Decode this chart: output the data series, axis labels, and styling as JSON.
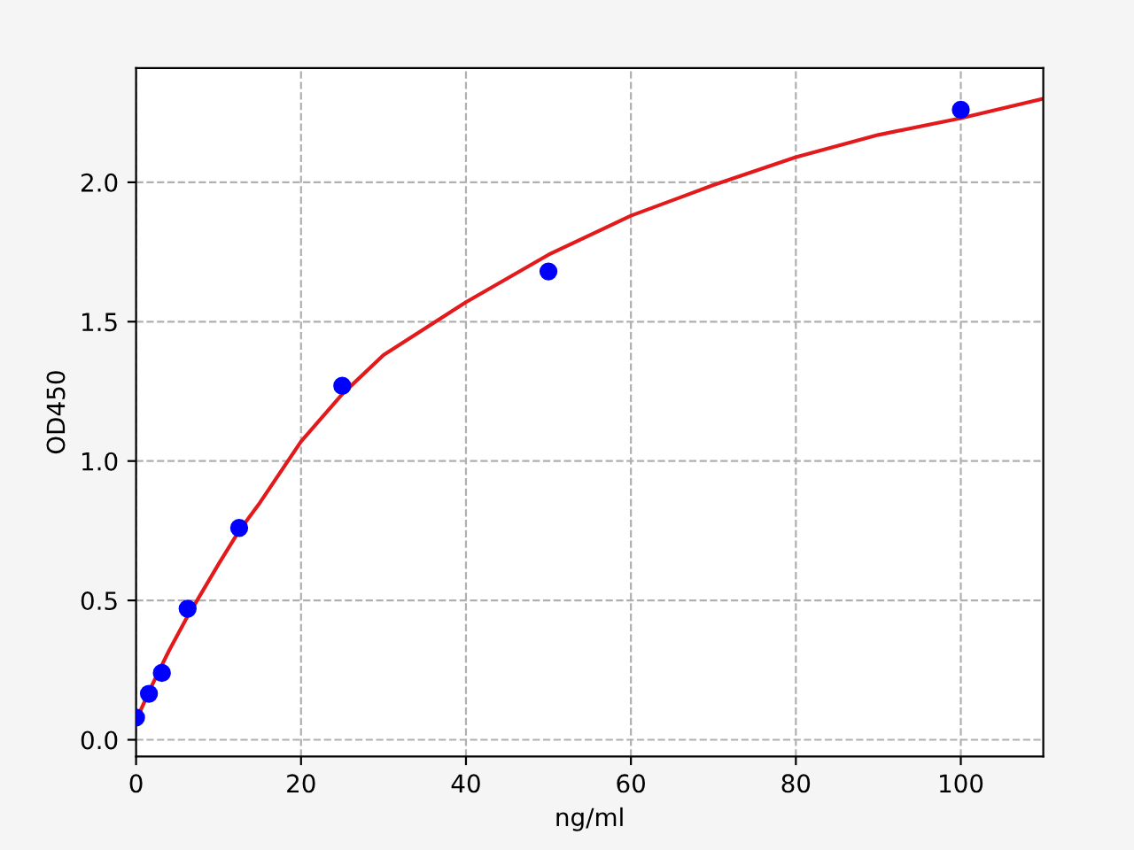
{
  "chart_data": {
    "type": "scatter",
    "xlabel": "ng/ml",
    "ylabel": "OD450",
    "xlim": [
      0,
      110
    ],
    "xticks": [
      0,
      20,
      40,
      60,
      80,
      100
    ],
    "ylim": [
      -0.06,
      2.41
    ],
    "yticks": [
      {
        "value": 0,
        "label": "0.0"
      },
      0.5,
      {
        "value": 1,
        "label": "1.0"
      },
      1.5,
      {
        "value": 2,
        "label": "2.0"
      }
    ],
    "grid": true,
    "series": [
      {
        "type": "line",
        "color": "#e31a1c",
        "marker": "none",
        "x": [
          0,
          2,
          4,
          6,
          8,
          10,
          12.5,
          15,
          20,
          25,
          30,
          40,
          50,
          60,
          70,
          80,
          90,
          100,
          110
        ],
        "values": [
          0.07,
          0.2,
          0.32,
          0.43,
          0.53,
          0.63,
          0.75,
          0.85,
          1.07,
          1.24,
          1.38,
          1.57,
          1.74,
          1.88,
          1.99,
          2.09,
          2.17,
          2.23,
          2.3
        ]
      },
      {
        "color": "#0000ff",
        "marker": "circle",
        "x": [
          0,
          1.56,
          3.125,
          6.25,
          12.5,
          25,
          50,
          100
        ],
        "values": [
          0.08,
          0.165,
          0.24,
          0.47,
          0.76,
          1.27,
          1.68,
          2.26
        ]
      }
    ]
  }
}
